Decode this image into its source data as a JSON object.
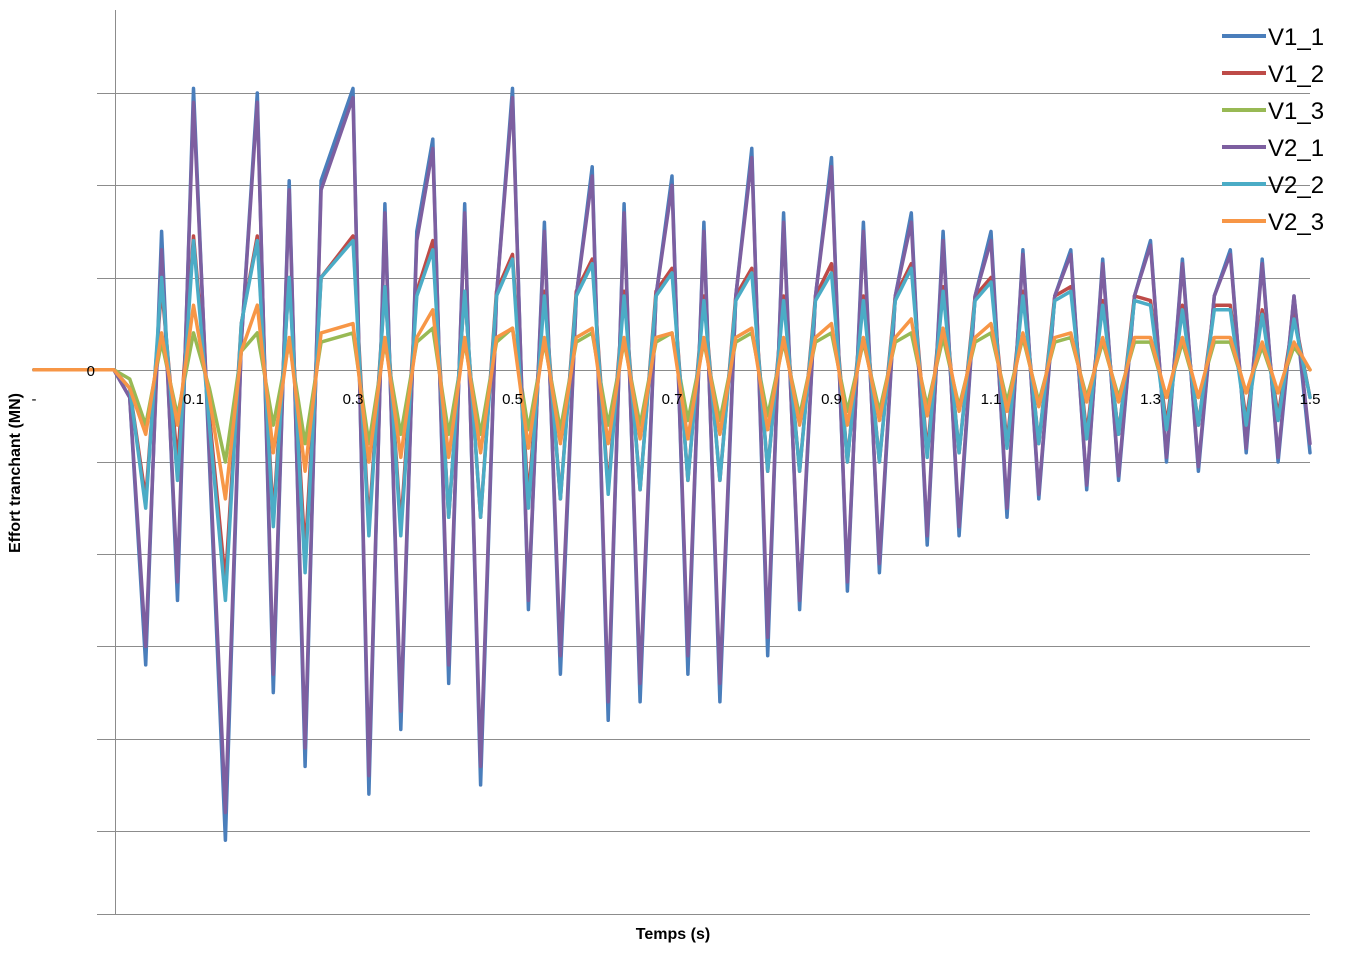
{
  "chart_data": {
    "type": "line",
    "title": "",
    "xlabel": "Temps (s)",
    "ylabel": "Effort tranchant (MN)",
    "xlim": [
      -0.1,
      1.5
    ],
    "ylim": [
      -5.9,
      3.9
    ],
    "x_ticks": [
      -0.1,
      0.1,
      0.3,
      0.5,
      0.7,
      0.9,
      1.1,
      1.3,
      1.5
    ],
    "x_tick_labels": [
      "-",
      "0.1",
      "0.3",
      "0.5",
      "0.7",
      "0.9",
      "1.1",
      "1.3",
      "1.5"
    ],
    "y_ticks": [
      -6,
      -5,
      -4,
      -3,
      -2,
      -1,
      0,
      1,
      2,
      3,
      4
    ],
    "y_tick_labels_visible": [
      "0"
    ],
    "grid": "horizontal",
    "legend_position": "top-right",
    "series": [
      {
        "name": "V1_1",
        "color": "#4A7EBB",
        "x": [
          -0.1,
          0.0,
          0.02,
          0.04,
          0.06,
          0.08,
          0.1,
          0.12,
          0.14,
          0.16,
          0.18,
          0.2,
          0.22,
          0.24,
          0.26,
          0.3,
          0.32,
          0.34,
          0.36,
          0.38,
          0.4,
          0.42,
          0.44,
          0.46,
          0.48,
          0.5,
          0.52,
          0.54,
          0.56,
          0.58,
          0.6,
          0.62,
          0.64,
          0.66,
          0.68,
          0.7,
          0.72,
          0.74,
          0.76,
          0.78,
          0.8,
          0.82,
          0.84,
          0.86,
          0.88,
          0.9,
          0.92,
          0.94,
          0.96,
          0.98,
          1.0,
          1.02,
          1.04,
          1.06,
          1.08,
          1.1,
          1.12,
          1.14,
          1.16,
          1.18,
          1.2,
          1.22,
          1.24,
          1.26,
          1.28,
          1.3,
          1.32,
          1.34,
          1.36,
          1.38,
          1.4,
          1.42,
          1.44,
          1.46,
          1.48,
          1.5
        ],
        "values": [
          0,
          0,
          -0.3,
          -3.2,
          1.5,
          -2.5,
          3.05,
          -1.0,
          -5.1,
          0.3,
          3.0,
          -3.5,
          2.05,
          -4.3,
          2.05,
          3.05,
          -4.6,
          1.8,
          -3.9,
          1.5,
          2.5,
          -3.4,
          1.8,
          -4.5,
          0.8,
          3.05,
          -2.6,
          1.6,
          -3.3,
          0.8,
          2.2,
          -3.8,
          1.8,
          -3.6,
          0.8,
          2.1,
          -3.3,
          1.6,
          -3.6,
          0.8,
          2.4,
          -3.1,
          1.7,
          -2.6,
          0.8,
          2.3,
          -2.4,
          1.6,
          -2.2,
          0.8,
          1.7,
          -1.9,
          1.5,
          -1.8,
          0.8,
          1.5,
          -1.6,
          1.3,
          -1.4,
          0.8,
          1.3,
          -1.3,
          1.2,
          -1.2,
          0.8,
          1.4,
          -1.0,
          1.2,
          -1.1,
          0.8,
          1.3,
          -0.9,
          1.2,
          -1.0,
          0.8,
          -0.9
        ]
      },
      {
        "name": "V1_2",
        "color": "#BE4B48",
        "x": [
          -0.1,
          0.0,
          0.02,
          0.04,
          0.06,
          0.08,
          0.1,
          0.12,
          0.14,
          0.16,
          0.18,
          0.2,
          0.22,
          0.24,
          0.26,
          0.3,
          0.32,
          0.34,
          0.36,
          0.38,
          0.4,
          0.42,
          0.44,
          0.46,
          0.48,
          0.5,
          0.52,
          0.54,
          0.56,
          0.58,
          0.6,
          0.62,
          0.64,
          0.66,
          0.68,
          0.7,
          0.72,
          0.74,
          0.76,
          0.78,
          0.8,
          0.82,
          0.84,
          0.86,
          0.88,
          0.9,
          0.92,
          0.94,
          0.96,
          0.98,
          1.0,
          1.02,
          1.04,
          1.06,
          1.08,
          1.1,
          1.12,
          1.14,
          1.16,
          1.18,
          1.2,
          1.22,
          1.24,
          1.26,
          1.28,
          1.3,
          1.32,
          1.34,
          1.36,
          1.38,
          1.4,
          1.42,
          1.44,
          1.46,
          1.48,
          1.5
        ],
        "values": [
          0,
          0,
          -0.2,
          -1.4,
          0.9,
          -1.0,
          1.45,
          -0.5,
          -2.3,
          0.5,
          1.45,
          -1.6,
          1.0,
          -2.0,
          1.0,
          1.45,
          -1.7,
          0.9,
          -1.7,
          0.85,
          1.4,
          -1.6,
          0.85,
          -1.6,
          0.85,
          1.25,
          -1.4,
          0.85,
          -1.4,
          0.85,
          1.2,
          -1.3,
          0.85,
          -1.3,
          0.85,
          1.1,
          -1.2,
          0.8,
          -1.2,
          0.8,
          1.1,
          -1.1,
          0.8,
          -1.1,
          0.8,
          1.15,
          -1.0,
          0.8,
          -1.0,
          0.8,
          1.15,
          -0.9,
          0.9,
          -0.9,
          0.8,
          1.0,
          -0.8,
          0.85,
          -0.8,
          0.8,
          0.9,
          -0.7,
          0.75,
          -0.7,
          0.8,
          0.75,
          -0.6,
          0.7,
          -0.6,
          0.7,
          0.7,
          -0.55,
          0.65,
          -0.5,
          0.6,
          -0.3
        ]
      },
      {
        "name": "V1_3",
        "color": "#98B954",
        "x": [
          -0.1,
          0.0,
          0.02,
          0.04,
          0.06,
          0.08,
          0.1,
          0.12,
          0.14,
          0.16,
          0.18,
          0.2,
          0.22,
          0.24,
          0.26,
          0.3,
          0.32,
          0.34,
          0.36,
          0.38,
          0.4,
          0.42,
          0.44,
          0.46,
          0.48,
          0.5,
          0.52,
          0.54,
          0.56,
          0.58,
          0.6,
          0.62,
          0.64,
          0.66,
          0.68,
          0.7,
          0.72,
          0.74,
          0.76,
          0.78,
          0.8,
          0.82,
          0.84,
          0.86,
          0.88,
          0.9,
          0.92,
          0.94,
          0.96,
          0.98,
          1.0,
          1.02,
          1.04,
          1.06,
          1.08,
          1.1,
          1.12,
          1.14,
          1.16,
          1.18,
          1.2,
          1.22,
          1.24,
          1.26,
          1.28,
          1.3,
          1.32,
          1.34,
          1.36,
          1.38,
          1.4,
          1.42,
          1.44,
          1.46,
          1.48,
          1.5
        ],
        "values": [
          0,
          0,
          -0.1,
          -0.6,
          0.3,
          -0.5,
          0.4,
          -0.2,
          -1.0,
          0.2,
          0.4,
          -0.6,
          0.3,
          -0.8,
          0.3,
          0.4,
          -0.8,
          0.3,
          -0.7,
          0.3,
          0.45,
          -0.7,
          0.3,
          -0.7,
          0.3,
          0.45,
          -0.65,
          0.3,
          -0.65,
          0.3,
          0.4,
          -0.6,
          0.3,
          -0.6,
          0.3,
          0.4,
          -0.55,
          0.3,
          -0.55,
          0.3,
          0.4,
          -0.5,
          0.3,
          -0.5,
          0.3,
          0.4,
          -0.45,
          0.3,
          -0.45,
          0.3,
          0.4,
          -0.4,
          0.35,
          -0.4,
          0.3,
          0.4,
          -0.35,
          0.35,
          -0.35,
          0.3,
          0.35,
          -0.3,
          0.3,
          -0.3,
          0.3,
          0.3,
          -0.3,
          0.3,
          -0.3,
          0.3,
          0.3,
          -0.25,
          0.25,
          -0.25,
          0.25,
          0.0
        ]
      },
      {
        "name": "V2_1",
        "color": "#7D5FA0",
        "x": [
          -0.1,
          0.0,
          0.02,
          0.04,
          0.06,
          0.08,
          0.1,
          0.12,
          0.14,
          0.16,
          0.18,
          0.2,
          0.22,
          0.24,
          0.26,
          0.3,
          0.32,
          0.34,
          0.36,
          0.38,
          0.4,
          0.42,
          0.44,
          0.46,
          0.48,
          0.5,
          0.52,
          0.54,
          0.56,
          0.58,
          0.6,
          0.62,
          0.64,
          0.66,
          0.68,
          0.7,
          0.72,
          0.74,
          0.76,
          0.78,
          0.8,
          0.82,
          0.84,
          0.86,
          0.88,
          0.9,
          0.92,
          0.94,
          0.96,
          0.98,
          1.0,
          1.02,
          1.04,
          1.06,
          1.08,
          1.1,
          1.12,
          1.14,
          1.16,
          1.18,
          1.2,
          1.22,
          1.24,
          1.26,
          1.28,
          1.3,
          1.32,
          1.34,
          1.36,
          1.38,
          1.4,
          1.42,
          1.44,
          1.46,
          1.48,
          1.5
        ],
        "values": [
          0,
          0,
          -0.3,
          -3.0,
          1.3,
          -2.3,
          2.9,
          -0.9,
          -4.8,
          0.3,
          2.9,
          -3.3,
          1.95,
          -4.1,
          1.95,
          2.95,
          -4.4,
          1.7,
          -3.7,
          1.4,
          2.4,
          -3.2,
          1.7,
          -4.3,
          0.8,
          2.95,
          -2.5,
          1.5,
          -3.1,
          0.8,
          2.1,
          -3.6,
          1.7,
          -3.4,
          0.8,
          2.0,
          -3.1,
          1.5,
          -3.4,
          0.8,
          2.3,
          -2.9,
          1.6,
          -2.5,
          0.8,
          2.2,
          -2.3,
          1.5,
          -2.1,
          0.8,
          1.6,
          -1.8,
          1.4,
          -1.7,
          0.8,
          1.4,
          -1.5,
          1.25,
          -1.35,
          0.8,
          1.25,
          -1.25,
          1.15,
          -1.15,
          0.8,
          1.35,
          -0.95,
          1.15,
          -1.05,
          0.8,
          1.25,
          -0.85,
          1.15,
          -0.95,
          0.8,
          -0.8
        ]
      },
      {
        "name": "V2_2",
        "color": "#4BACC6",
        "x": [
          -0.1,
          0.0,
          0.02,
          0.04,
          0.06,
          0.08,
          0.1,
          0.12,
          0.14,
          0.16,
          0.18,
          0.2,
          0.22,
          0.24,
          0.26,
          0.3,
          0.32,
          0.34,
          0.36,
          0.38,
          0.4,
          0.42,
          0.44,
          0.46,
          0.48,
          0.5,
          0.52,
          0.54,
          0.56,
          0.58,
          0.6,
          0.62,
          0.64,
          0.66,
          0.68,
          0.7,
          0.72,
          0.74,
          0.76,
          0.78,
          0.8,
          0.82,
          0.84,
          0.86,
          0.88,
          0.9,
          0.92,
          0.94,
          0.96,
          0.98,
          1.0,
          1.02,
          1.04,
          1.06,
          1.08,
          1.1,
          1.12,
          1.14,
          1.16,
          1.18,
          1.2,
          1.22,
          1.24,
          1.26,
          1.28,
          1.3,
          1.32,
          1.34,
          1.36,
          1.38,
          1.4,
          1.42,
          1.44,
          1.46,
          1.48,
          1.5
        ],
        "values": [
          0,
          0,
          -0.2,
          -1.5,
          1.0,
          -1.2,
          1.4,
          -0.6,
          -2.5,
          0.5,
          1.4,
          -1.7,
          1.0,
          -2.2,
          1.0,
          1.4,
          -1.8,
          0.9,
          -1.8,
          0.8,
          1.3,
          -1.6,
          0.85,
          -1.6,
          0.8,
          1.2,
          -1.5,
          0.8,
          -1.4,
          0.8,
          1.15,
          -1.35,
          0.8,
          -1.3,
          0.8,
          1.05,
          -1.2,
          0.75,
          -1.2,
          0.75,
          1.05,
          -1.1,
          0.75,
          -1.1,
          0.75,
          1.05,
          -1.0,
          0.75,
          -1.0,
          0.75,
          1.1,
          -0.95,
          0.85,
          -0.9,
          0.75,
          0.95,
          -0.85,
          0.8,
          -0.8,
          0.75,
          0.85,
          -0.75,
          0.7,
          -0.7,
          0.75,
          0.7,
          -0.65,
          0.65,
          -0.6,
          0.65,
          0.65,
          -0.6,
          0.6,
          -0.55,
          0.55,
          -0.3
        ]
      },
      {
        "name": "V2_3",
        "color": "#F79646",
        "x": [
          -0.1,
          0.0,
          0.02,
          0.04,
          0.06,
          0.08,
          0.1,
          0.12,
          0.14,
          0.16,
          0.18,
          0.2,
          0.22,
          0.24,
          0.26,
          0.3,
          0.32,
          0.34,
          0.36,
          0.38,
          0.4,
          0.42,
          0.44,
          0.46,
          0.48,
          0.5,
          0.52,
          0.54,
          0.56,
          0.58,
          0.6,
          0.62,
          0.64,
          0.66,
          0.68,
          0.7,
          0.72,
          0.74,
          0.76,
          0.78,
          0.8,
          0.82,
          0.84,
          0.86,
          0.88,
          0.9,
          0.92,
          0.94,
          0.96,
          0.98,
          1.0,
          1.02,
          1.04,
          1.06,
          1.08,
          1.1,
          1.12,
          1.14,
          1.16,
          1.18,
          1.2,
          1.22,
          1.24,
          1.26,
          1.28,
          1.3,
          1.32,
          1.34,
          1.36,
          1.38,
          1.4,
          1.42,
          1.44,
          1.46,
          1.48,
          1.5
        ],
        "values": [
          0,
          0,
          -0.2,
          -0.7,
          0.4,
          -0.6,
          0.7,
          -0.3,
          -1.4,
          0.2,
          0.7,
          -0.9,
          0.35,
          -1.1,
          0.4,
          0.5,
          -1.0,
          0.35,
          -0.95,
          0.35,
          0.65,
          -0.95,
          0.35,
          -0.9,
          0.35,
          0.45,
          -0.85,
          0.35,
          -0.8,
          0.35,
          0.45,
          -0.8,
          0.35,
          -0.75,
          0.35,
          0.4,
          -0.75,
          0.35,
          -0.7,
          0.35,
          0.45,
          -0.65,
          0.35,
          -0.6,
          0.35,
          0.5,
          -0.6,
          0.35,
          -0.55,
          0.35,
          0.55,
          -0.5,
          0.45,
          -0.45,
          0.35,
          0.5,
          -0.45,
          0.4,
          -0.4,
          0.35,
          0.4,
          -0.35,
          0.35,
          -0.35,
          0.35,
          0.35,
          -0.3,
          0.35,
          -0.3,
          0.35,
          0.35,
          -0.25,
          0.3,
          -0.25,
          0.3,
          0.0
        ]
      }
    ]
  }
}
